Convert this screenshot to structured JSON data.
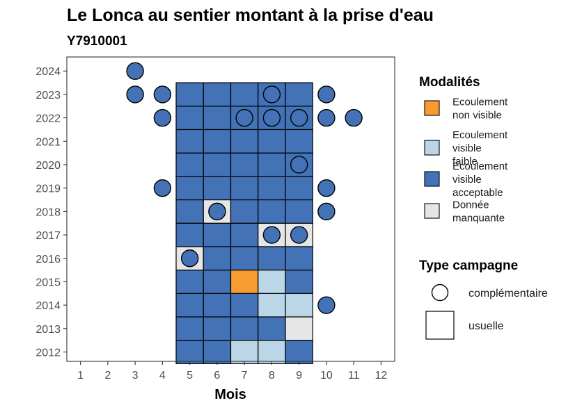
{
  "chart_data": {
    "type": "heatmap",
    "title": "Le Lonca au sentier montant à la prise d'eau",
    "subtitle": "Y7910001",
    "xlabel": "Mois",
    "ylabel": "",
    "x_ticks": [
      1,
      2,
      3,
      4,
      5,
      6,
      7,
      8,
      9,
      10,
      11,
      12
    ],
    "y_ticks": [
      2012,
      2013,
      2014,
      2015,
      2016,
      2017,
      2018,
      2019,
      2020,
      2021,
      2022,
      2023,
      2024
    ],
    "xlim": [
      0.5,
      12.5
    ],
    "ylim": [
      2011.6,
      2024.6
    ],
    "grid": false,
    "legend_position": "right",
    "legend_modalites": {
      "title": "Modalités",
      "items": [
        {
          "key": "nv",
          "label_lines": [
            "Ecoulement",
            "non visible"
          ],
          "color": "#F89B31"
        },
        {
          "key": "vf",
          "label_lines": [
            "Ecoulement",
            "visible",
            "faible"
          ],
          "color": "#BBD6E7"
        },
        {
          "key": "va",
          "label_lines": [
            "Ecoulement",
            "visible",
            "acceptable"
          ],
          "color": "#4372B6"
        },
        {
          "key": "dm",
          "label_lines": [
            "Donnée",
            "manquante"
          ],
          "color": "#E6E6E6"
        }
      ]
    },
    "legend_type": {
      "title": "Type campagne",
      "items": [
        {
          "key": "complementaire",
          "label": "complémentaire",
          "shape": "circle"
        },
        {
          "key": "usuelle",
          "label": "usuelle",
          "shape": "square"
        }
      ]
    },
    "usuelle_cells": [
      {
        "year": 2012,
        "month": 5,
        "mod": "va"
      },
      {
        "year": 2012,
        "month": 6,
        "mod": "va"
      },
      {
        "year": 2012,
        "month": 7,
        "mod": "vf"
      },
      {
        "year": 2012,
        "month": 8,
        "mod": "vf"
      },
      {
        "year": 2012,
        "month": 9,
        "mod": "va"
      },
      {
        "year": 2013,
        "month": 5,
        "mod": "va"
      },
      {
        "year": 2013,
        "month": 6,
        "mod": "va"
      },
      {
        "year": 2013,
        "month": 7,
        "mod": "va"
      },
      {
        "year": 2013,
        "month": 8,
        "mod": "va"
      },
      {
        "year": 2013,
        "month": 9,
        "mod": "dm"
      },
      {
        "year": 2014,
        "month": 5,
        "mod": "va"
      },
      {
        "year": 2014,
        "month": 6,
        "mod": "va"
      },
      {
        "year": 2014,
        "month": 7,
        "mod": "va"
      },
      {
        "year": 2014,
        "month": 8,
        "mod": "vf"
      },
      {
        "year": 2014,
        "month": 9,
        "mod": "vf"
      },
      {
        "year": 2015,
        "month": 5,
        "mod": "va"
      },
      {
        "year": 2015,
        "month": 6,
        "mod": "va"
      },
      {
        "year": 2015,
        "month": 7,
        "mod": "nv"
      },
      {
        "year": 2015,
        "month": 8,
        "mod": "vf"
      },
      {
        "year": 2015,
        "month": 9,
        "mod": "va"
      },
      {
        "year": 2016,
        "month": 5,
        "mod": "dm"
      },
      {
        "year": 2016,
        "month": 6,
        "mod": "va"
      },
      {
        "year": 2016,
        "month": 7,
        "mod": "va"
      },
      {
        "year": 2016,
        "month": 8,
        "mod": "va"
      },
      {
        "year": 2016,
        "month": 9,
        "mod": "va"
      },
      {
        "year": 2017,
        "month": 5,
        "mod": "va"
      },
      {
        "year": 2017,
        "month": 6,
        "mod": "va"
      },
      {
        "year": 2017,
        "month": 7,
        "mod": "va"
      },
      {
        "year": 2017,
        "month": 8,
        "mod": "dm"
      },
      {
        "year": 2017,
        "month": 9,
        "mod": "dm"
      },
      {
        "year": 2018,
        "month": 5,
        "mod": "va"
      },
      {
        "year": 2018,
        "month": 6,
        "mod": "dm"
      },
      {
        "year": 2018,
        "month": 7,
        "mod": "va"
      },
      {
        "year": 2018,
        "month": 8,
        "mod": "va"
      },
      {
        "year": 2018,
        "month": 9,
        "mod": "va"
      },
      {
        "year": 2019,
        "month": 5,
        "mod": "va"
      },
      {
        "year": 2019,
        "month": 6,
        "mod": "va"
      },
      {
        "year": 2019,
        "month": 7,
        "mod": "va"
      },
      {
        "year": 2019,
        "month": 8,
        "mod": "va"
      },
      {
        "year": 2019,
        "month": 9,
        "mod": "va"
      },
      {
        "year": 2020,
        "month": 5,
        "mod": "va"
      },
      {
        "year": 2020,
        "month": 6,
        "mod": "va"
      },
      {
        "year": 2020,
        "month": 7,
        "mod": "va"
      },
      {
        "year": 2020,
        "month": 8,
        "mod": "va"
      },
      {
        "year": 2020,
        "month": 9,
        "mod": "va"
      },
      {
        "year": 2021,
        "month": 5,
        "mod": "va"
      },
      {
        "year": 2021,
        "month": 6,
        "mod": "va"
      },
      {
        "year": 2021,
        "month": 7,
        "mod": "va"
      },
      {
        "year": 2021,
        "month": 8,
        "mod": "va"
      },
      {
        "year": 2021,
        "month": 9,
        "mod": "va"
      },
      {
        "year": 2022,
        "month": 5,
        "mod": "va"
      },
      {
        "year": 2022,
        "month": 6,
        "mod": "va"
      },
      {
        "year": 2022,
        "month": 7,
        "mod": "va"
      },
      {
        "year": 2022,
        "month": 8,
        "mod": "va"
      },
      {
        "year": 2022,
        "month": 9,
        "mod": "va"
      },
      {
        "year": 2023,
        "month": 5,
        "mod": "va"
      },
      {
        "year": 2023,
        "month": 6,
        "mod": "va"
      },
      {
        "year": 2023,
        "month": 7,
        "mod": "va"
      },
      {
        "year": 2023,
        "month": 8,
        "mod": "va"
      },
      {
        "year": 2023,
        "month": 9,
        "mod": "va"
      }
    ],
    "complementaire_points": [
      {
        "year": 2024,
        "month": 3,
        "mod": "va"
      },
      {
        "year": 2023,
        "month": 3,
        "mod": "va"
      },
      {
        "year": 2023,
        "month": 4,
        "mod": "va"
      },
      {
        "year": 2023,
        "month": 8,
        "mod": "va"
      },
      {
        "year": 2023,
        "month": 10,
        "mod": "va"
      },
      {
        "year": 2022,
        "month": 4,
        "mod": "va"
      },
      {
        "year": 2022,
        "month": 7,
        "mod": "va"
      },
      {
        "year": 2022,
        "month": 8,
        "mod": "va"
      },
      {
        "year": 2022,
        "month": 9,
        "mod": "va"
      },
      {
        "year": 2022,
        "month": 10,
        "mod": "va"
      },
      {
        "year": 2022,
        "month": 11,
        "mod": "va"
      },
      {
        "year": 2020,
        "month": 9,
        "mod": "va"
      },
      {
        "year": 2019,
        "month": 4,
        "mod": "va"
      },
      {
        "year": 2019,
        "month": 10,
        "mod": "va"
      },
      {
        "year": 2018,
        "month": 6,
        "mod": "va"
      },
      {
        "year": 2018,
        "month": 10,
        "mod": "va"
      },
      {
        "year": 2017,
        "month": 8,
        "mod": "va"
      },
      {
        "year": 2017,
        "month": 9,
        "mod": "va"
      },
      {
        "year": 2016,
        "month": 5,
        "mod": "va"
      },
      {
        "year": 2014,
        "month": 10,
        "mod": "va"
      }
    ]
  }
}
